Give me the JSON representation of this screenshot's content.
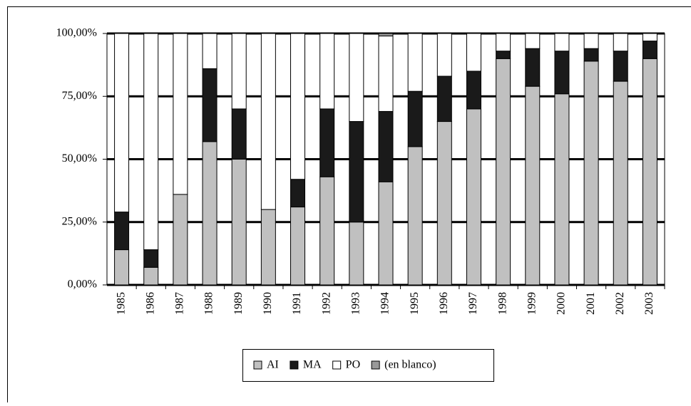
{
  "chart_data": {
    "type": "stacked_bar",
    "categories": [
      "1985",
      "1986",
      "1987",
      "1988",
      "1989",
      "1990",
      "1991",
      "1992",
      "1993",
      "1994",
      "1995",
      "1996",
      "1997",
      "1998",
      "1999",
      "2000",
      "2001",
      "2002",
      "2003"
    ],
    "series": [
      {
        "name": "AI",
        "color": "#c0c0c0",
        "values": [
          14,
          7,
          36,
          57,
          50,
          30,
          31,
          43,
          25,
          41,
          55,
          65,
          70,
          90,
          79,
          76,
          89,
          81,
          90
        ]
      },
      {
        "name": "MA",
        "color": "#1a1a1a",
        "values": [
          15,
          7,
          0,
          29,
          20,
          0,
          11,
          27,
          40,
          28,
          22,
          18,
          15,
          3,
          15,
          17,
          5,
          12,
          7
        ]
      },
      {
        "name": "PO",
        "color": "#ffffff",
        "values": [
          71,
          86,
          64,
          14,
          30,
          70,
          58,
          30,
          35,
          30,
          23,
          17,
          15,
          7,
          6,
          7,
          6,
          7,
          3
        ]
      },
      {
        "name": "(en blanco)",
        "color": "#999999",
        "values": [
          0,
          0,
          0,
          0,
          0,
          0,
          0,
          0,
          0,
          1,
          0,
          0,
          0,
          0,
          0,
          0,
          0,
          0,
          0
        ]
      }
    ],
    "ylim": [
      0,
      100
    ],
    "yticks": [
      {
        "value": 0,
        "label": "0,00%"
      },
      {
        "value": 25,
        "label": "25,00%"
      },
      {
        "value": 50,
        "label": "50,00%"
      },
      {
        "value": 75,
        "label": "75,00%"
      },
      {
        "value": 100,
        "label": "100,00%"
      }
    ],
    "grid": true
  }
}
